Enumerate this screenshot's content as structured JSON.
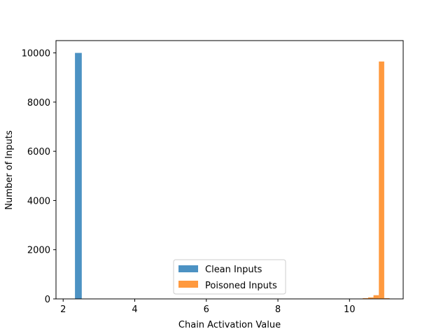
{
  "chart_data": {
    "type": "bar",
    "title": "",
    "xlabel": "Chain Activation Value",
    "ylabel": "Number of Inputs",
    "xlim": [
      1.8,
      11.5
    ],
    "ylim": [
      0,
      10500
    ],
    "x_ticks": [
      2,
      4,
      6,
      8,
      10
    ],
    "y_ticks": [
      0,
      2000,
      4000,
      6000,
      8000,
      10000
    ],
    "grid": false,
    "legend_placement": "lower center",
    "series": [
      {
        "name": "Clean Inputs",
        "color": "#1f77b4",
        "opacity": 0.8,
        "bins": [
          {
            "x0": 2.33,
            "x1": 2.52,
            "value": 10000
          }
        ]
      },
      {
        "name": "Poisoned Inputs",
        "color": "#ff7f0e",
        "opacity": 0.8,
        "bins": [
          {
            "x0": 10.37,
            "x1": 10.52,
            "value": 30
          },
          {
            "x0": 10.52,
            "x1": 10.67,
            "value": 60
          },
          {
            "x0": 10.67,
            "x1": 10.82,
            "value": 150
          },
          {
            "x0": 10.82,
            "x1": 10.97,
            "value": 9650
          },
          {
            "x0": 10.97,
            "x1": 11.12,
            "value": 30
          }
        ]
      }
    ]
  }
}
